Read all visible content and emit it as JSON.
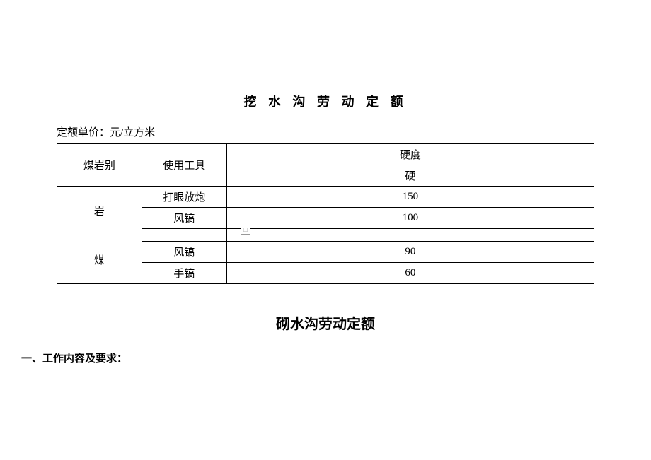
{
  "title1": "挖 水 沟 劳 动 定 额",
  "unitLabel": "定额单价：元/立方米",
  "table": {
    "header": {
      "col1": "煤岩别",
      "col2": "使用工具",
      "col3_top": "硬度",
      "col3_bottom": "硬"
    },
    "rows": [
      {
        "cat": "岩",
        "tool1": "打眼放炮",
        "val1": "150",
        "tool2": "风镐",
        "val2": "100",
        "tool3": "",
        "val3": ""
      },
      {
        "cat": "煤",
        "tool_empty": "",
        "val_empty": "",
        "tool1": "风镐",
        "val1": "90",
        "tool2": "手镐",
        "val2": "60"
      }
    ]
  },
  "title2": "砌水沟劳动定额",
  "sectionLabel": "一、工作内容及要求：",
  "colors": {
    "text": "#000000",
    "background": "#ffffff",
    "border": "#000000"
  }
}
